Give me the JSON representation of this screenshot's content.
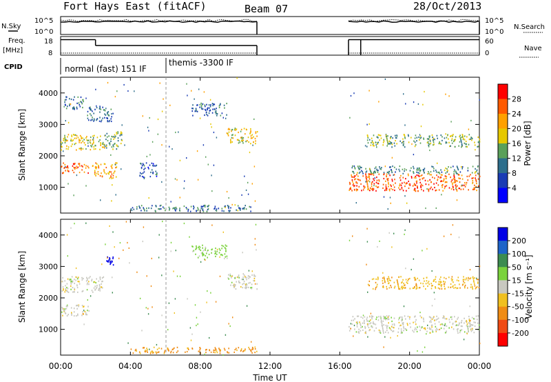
{
  "header": {
    "station": "Fort Hays East (fitACF)",
    "beam": "Beam 07",
    "date": "28/Oct/2013"
  },
  "noise_panel": {
    "left_label": "N.Sky",
    "right_label": "N.Search",
    "left_ticks": [
      "10^5",
      "10^0"
    ],
    "right_ticks": [
      "10^5",
      "10^0"
    ]
  },
  "freq_panel": {
    "left_label": "Freq.",
    "left_unit": "[MHz]",
    "right_label": "Nave",
    "left_ticks": [
      "18",
      "8"
    ],
    "right_ticks": [
      "60",
      "0"
    ]
  },
  "cpid": {
    "label": "CPID",
    "modes": [
      {
        "name": "normal (fast) 151 IF",
        "start_hour": 0
      },
      {
        "name": "themis -3300 IF",
        "start_hour": 6
      }
    ]
  },
  "power_colorbar": {
    "title": "Power [dB]",
    "tick_labels": [
      "28",
      "24",
      "20",
      "16",
      "12",
      "8",
      "4"
    ],
    "colors": [
      "#ff0000",
      "#ff5a00",
      "#ffa000",
      "#e6c800",
      "#5aa05a",
      "#2d6e8c",
      "#1a3cb4",
      "#0000ff"
    ]
  },
  "velocity_colorbar": {
    "title": "Velocity [m s⁻¹]",
    "tick_labels": [
      "200",
      "100",
      "50",
      "15",
      "-15",
      "-50",
      "-100",
      "-200"
    ],
    "colors": [
      "#0000e6",
      "#1e64c8",
      "#3c8c50",
      "#7ad23c",
      "#c8c8c0",
      "#f0c020",
      "#f08c14",
      "#f04b14",
      "#ff0000"
    ]
  },
  "axes": {
    "xlabel": "Time UT",
    "ylabel": "Slant Range [km]",
    "x_ticks": [
      "00:00",
      "04:00",
      "08:00",
      "12:00",
      "16:00",
      "20:00",
      "00:00"
    ],
    "y_ticks": [
      "1000",
      "2000",
      "3000",
      "4000"
    ]
  },
  "chart_data": {
    "type": "heatmap",
    "x_range_hours": [
      0,
      24
    ],
    "y_range_km": [
      180,
      4500
    ],
    "data_gap_hours": [
      11.25,
      16.5
    ],
    "cpid_change_hour": 6,
    "noise_sky_level": 0.72,
    "noise_search_level": 0.78,
    "freq_series": [
      {
        "from": 0,
        "to": 2,
        "mhz": 16.5
      },
      {
        "from": 2,
        "to": 11.25,
        "mhz": 11.5
      },
      {
        "from": 16.5,
        "to": 24,
        "mhz": 16.5
      }
    ],
    "nave_series": [
      {
        "from": 0,
        "to": 11.25,
        "value": 3
      },
      {
        "from": 16.5,
        "to": 24,
        "value": 3
      }
    ],
    "power_echo_regions": [
      {
        "t0": 0.0,
        "t1": 1.6,
        "r0": 1450,
        "r1": 1800,
        "db": 26
      },
      {
        "t0": 0.0,
        "t1": 2.5,
        "r0": 2200,
        "r1": 2700,
        "db": 18
      },
      {
        "t0": 1.8,
        "t1": 3.2,
        "r0": 1300,
        "r1": 1800,
        "db": 22
      },
      {
        "t0": 2.5,
        "t1": 3.5,
        "r0": 2200,
        "r1": 2800,
        "db": 14
      },
      {
        "t0": 0.2,
        "t1": 1.3,
        "r0": 3500,
        "r1": 3900,
        "db": 10
      },
      {
        "t0": 1.5,
        "t1": 3.0,
        "r0": 3100,
        "r1": 3600,
        "db": 9
      },
      {
        "t0": 4.5,
        "t1": 5.5,
        "r0": 1300,
        "r1": 1800,
        "db": 8
      },
      {
        "t0": 7.5,
        "t1": 9.5,
        "r0": 3300,
        "r1": 3700,
        "db": 9
      },
      {
        "t0": 9.5,
        "t1": 11.25,
        "r0": 2400,
        "r1": 2900,
        "db": 18
      },
      {
        "t0": 16.5,
        "t1": 24,
        "r0": 900,
        "r1": 1450,
        "db": 26
      },
      {
        "t0": 16.5,
        "t1": 24,
        "r0": 1450,
        "r1": 1700,
        "db": 12
      },
      {
        "t0": 17.5,
        "t1": 24,
        "r0": 2300,
        "r1": 2700,
        "db": 14
      },
      {
        "t0": 4.0,
        "t1": 11.25,
        "r0": 250,
        "r1": 450,
        "db": 10
      }
    ],
    "velocity_echo_regions": [
      {
        "t0": 0.0,
        "t1": 1.6,
        "r0": 1450,
        "r1": 1800,
        "v": 0
      },
      {
        "t0": 0.0,
        "t1": 2.5,
        "r0": 2200,
        "r1": 2700,
        "v": 0
      },
      {
        "t0": 2.6,
        "t1": 3.0,
        "r0": 3050,
        "r1": 3350,
        "v": 250
      },
      {
        "t0": 9.5,
        "t1": 11.25,
        "r0": 2300,
        "r1": 2800,
        "v": 0
      },
      {
        "t0": 16.5,
        "t1": 24,
        "r0": 900,
        "r1": 1450,
        "v": 0
      },
      {
        "t0": 17.5,
        "t1": 24,
        "r0": 2300,
        "r1": 2700,
        "v": -40
      },
      {
        "t0": 4.0,
        "t1": 11.25,
        "r0": 250,
        "r1": 450,
        "v": -60
      },
      {
        "t0": 7.5,
        "t1": 9.5,
        "r0": 3300,
        "r1": 3700,
        "v": 30
      }
    ]
  }
}
